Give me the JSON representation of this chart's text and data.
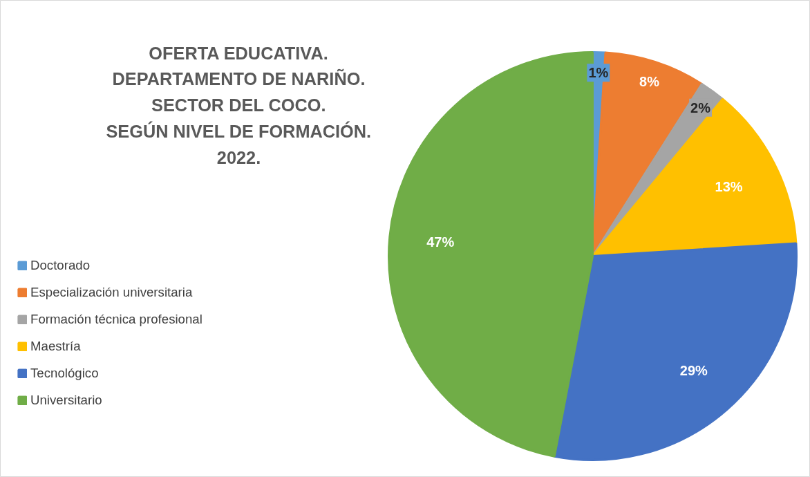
{
  "chart_data": {
    "type": "pie",
    "title": "OFERTA EDUCATIVA.\nDEPARTAMENTO DE NARIÑO.\nSECTOR DEL COCO.\nSEGÚN NIVEL DE FORMACIÓN.\n2022.",
    "categories": [
      "Doctorado",
      "Especialización universitaria",
      "Formación técnica profesional",
      "Maestría",
      "Tecnológico",
      "Universitario"
    ],
    "values": [
      1,
      8,
      2,
      13,
      29,
      47
    ],
    "colors": [
      "#5b9bd5",
      "#ed7d31",
      "#a5a5a5",
      "#ffc000",
      "#4472c4",
      "#70ad47"
    ],
    "value_labels": [
      "1%",
      "8%",
      "2%",
      "13%",
      "29%",
      "47%"
    ],
    "legend": "left"
  }
}
